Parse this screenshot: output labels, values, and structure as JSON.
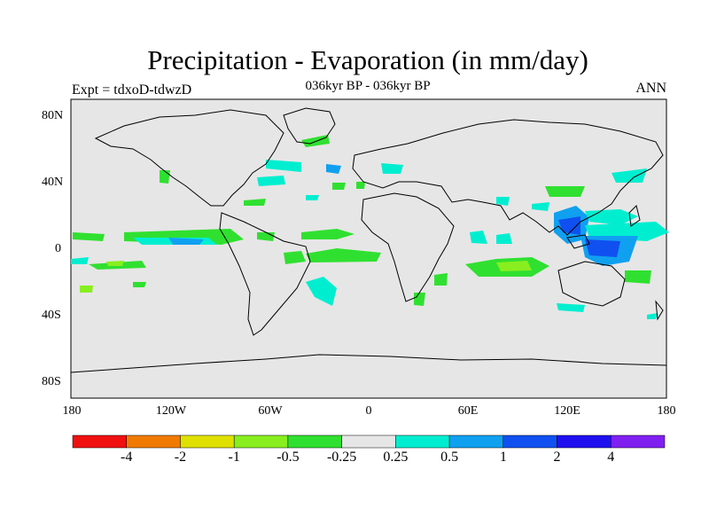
{
  "title": "Precipitation - Evaporation (in mm/day)",
  "subtitle": "036kyr BP - 036kyr BP",
  "left_label": "Expt = tdxoD-tdwzD",
  "right_label": "ANN",
  "lat_ticks": [
    "80N",
    "40N",
    "0",
    "40S",
    "80S"
  ],
  "lon_ticks": [
    "180",
    "120W",
    "60W",
    "0",
    "60E",
    "120E",
    "180"
  ],
  "colorbar": {
    "colors": [
      "#f01010",
      "#f07a00",
      "#e0e000",
      "#88ee20",
      "#30e030",
      "#e6e6e6",
      "#00eed0",
      "#10a0f0",
      "#1050f0",
      "#2010f0",
      "#8020f0"
    ],
    "labels": [
      "-4",
      "-2",
      "-1",
      "-0.5",
      "-0.25",
      "0.25",
      "0.5",
      "1",
      "2",
      "4"
    ]
  },
  "map": {
    "ocean_color": "#e6e6e6"
  }
}
